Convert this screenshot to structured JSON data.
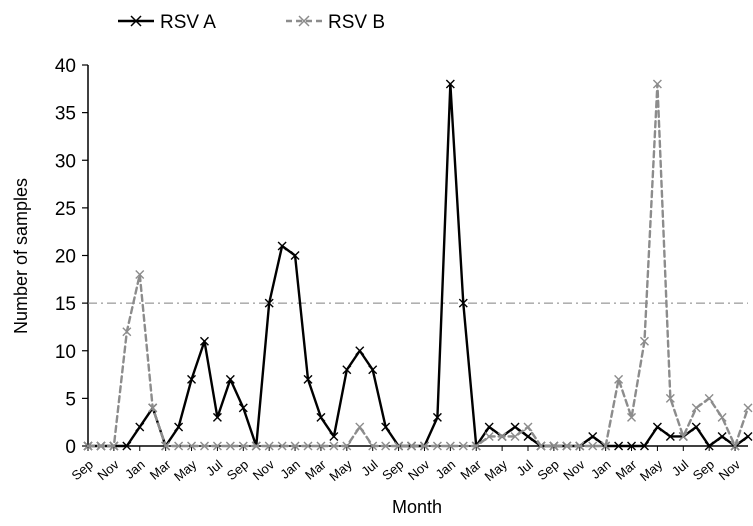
{
  "chart_data": {
    "type": "line",
    "title": "",
    "xlabel": "Month",
    "ylabel": "Number of samples",
    "ylim": [
      0,
      40
    ],
    "yticks": [
      0,
      5,
      10,
      15,
      20,
      25,
      30,
      35,
      40
    ],
    "grid": false,
    "legend": "top-left",
    "reference_line": {
      "y": 15,
      "style": "dash-dot",
      "color": "#808080"
    },
    "categories": [
      "Sep",
      "Oct",
      "Nov",
      "Dec",
      "Jan",
      "Feb",
      "Mar",
      "Apr",
      "May",
      "Jun",
      "Jul",
      "Aug",
      "Sep",
      "Oct",
      "Nov",
      "Dec",
      "Jan",
      "Feb",
      "Mar",
      "Apr",
      "May",
      "Jun",
      "Jul",
      "Aug",
      "Sep",
      "Oct",
      "Nov",
      "Dec",
      "Jan",
      "Feb",
      "Mar",
      "Apr",
      "May",
      "Jun",
      "Jul",
      "Aug",
      "Sep",
      "Oct",
      "Nov",
      "Dec",
      "Jan",
      "Feb",
      "Mar",
      "Apr",
      "May",
      "Jun",
      "Jul",
      "Aug",
      "Sep",
      "Oct",
      "Nov",
      "Dec"
    ],
    "tick_labels": [
      "Sep",
      "Nov",
      "Jan",
      "Mar",
      "May",
      "Jul",
      "Sep",
      "Nov",
      "Jan",
      "Mar",
      "May",
      "Jul",
      "Sep",
      "Nov",
      "Jan",
      "Mar",
      "May",
      "Jul",
      "Sep",
      "Nov",
      "Jan",
      "Mar",
      "May",
      "Jul",
      "Sep",
      "Nov"
    ],
    "series": [
      {
        "name": "RSV A",
        "color": "#000000",
        "dash": "solid",
        "marker": "x",
        "values": [
          0,
          0,
          0,
          0,
          2,
          4,
          0,
          2,
          7,
          11,
          3,
          7,
          4,
          0,
          15,
          21,
          20,
          7,
          3,
          1,
          8,
          10,
          8,
          2,
          0,
          0,
          0,
          3,
          38,
          15,
          0,
          2,
          1,
          2,
          1,
          0,
          0,
          0,
          0,
          1,
          0,
          0,
          0,
          0,
          2,
          1,
          1,
          2,
          0,
          1,
          0,
          1
        ]
      },
      {
        "name": "RSV B",
        "color": "#8c8c8c",
        "dash": "dashed",
        "marker": "x",
        "values": [
          0,
          0,
          0,
          12,
          18,
          4,
          0,
          0,
          0,
          0,
          0,
          0,
          0,
          0,
          0,
          0,
          0,
          0,
          0,
          0,
          0,
          2,
          0,
          0,
          0,
          0,
          0,
          0,
          0,
          0,
          0,
          1,
          1,
          1,
          2,
          0,
          0,
          0,
          0,
          0,
          0,
          7,
          3,
          11,
          38,
          5,
          1,
          4,
          5,
          3,
          0,
          4
        ]
      }
    ]
  }
}
